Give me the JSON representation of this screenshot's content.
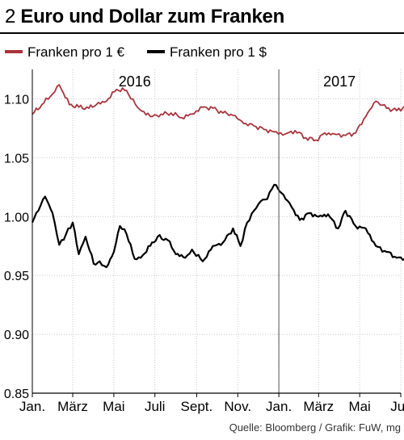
{
  "header": {
    "number": "2",
    "title": "Euro und Dollar zum Franken"
  },
  "source": "Quelle: Bloomberg / Grafik: FuW, mg",
  "chart_data": {
    "type": "line",
    "title": "Euro und Dollar zum Franken",
    "ylim": [
      0.85,
      1.125
    ],
    "y_ticks": [
      "1.10",
      "1.05",
      "1.00",
      "0.95",
      "0.90",
      "0.85"
    ],
    "y_tick_values": [
      1.1,
      1.05,
      1.0,
      0.95,
      0.9,
      0.85
    ],
    "x_tick_labels": [
      "Jan.",
      "März",
      "Mai",
      "Juli",
      "Sept.",
      "Nov.",
      "Jan.",
      "März",
      "Mai",
      "Juli"
    ],
    "x_tick_months": [
      "2016-01",
      "2016-03",
      "2016-05",
      "2016-07",
      "2016-09",
      "2016-11",
      "2017-01",
      "2017-03",
      "2017-05",
      "2017-07"
    ],
    "xlim": [
      "2016-01",
      "2017-07"
    ],
    "year_labels": [
      {
        "label": "2016",
        "month": "2016-06"
      },
      {
        "label": "2017",
        "month": "2017-04"
      }
    ],
    "year_divider": "2017-01",
    "grid": true,
    "legend_position": "top-left",
    "series": [
      {
        "name": "Franken pro 1 €",
        "color": "#a8343c",
        "x": [
          "2016-01-01",
          "2016-01-15",
          "2016-01-31",
          "2016-02-10",
          "2016-02-25",
          "2016-03-10",
          "2016-03-25",
          "2016-04-05",
          "2016-04-20",
          "2016-05-05",
          "2016-05-20",
          "2016-06-05",
          "2016-06-24",
          "2016-07-10",
          "2016-07-25",
          "2016-08-10",
          "2016-08-25",
          "2016-09-10",
          "2016-09-25",
          "2016-10-10",
          "2016-10-25",
          "2016-11-10",
          "2016-11-25",
          "2016-12-10",
          "2016-12-25",
          "2017-01-10",
          "2017-01-25",
          "2017-02-10",
          "2017-02-25",
          "2017-03-10",
          "2017-03-25",
          "2017-04-10",
          "2017-04-25",
          "2017-05-10",
          "2017-05-25",
          "2017-06-10",
          "2017-06-25",
          "2017-07-10",
          "2017-07-28"
        ],
        "y": [
          1.087,
          1.095,
          1.104,
          1.112,
          1.095,
          1.093,
          1.092,
          1.095,
          1.098,
          1.108,
          1.107,
          1.093,
          1.085,
          1.087,
          1.088,
          1.084,
          1.087,
          1.093,
          1.092,
          1.088,
          1.086,
          1.079,
          1.077,
          1.074,
          1.072,
          1.07,
          1.073,
          1.067,
          1.065,
          1.071,
          1.07,
          1.069,
          1.071,
          1.085,
          1.098,
          1.092,
          1.09,
          1.094,
          1.105
        ]
      },
      {
        "name": "Franken pro 1 $",
        "color": "#000000",
        "x": [
          "2016-01-01",
          "2016-01-10",
          "2016-01-20",
          "2016-01-31",
          "2016-02-10",
          "2016-02-20",
          "2016-03-01",
          "2016-03-10",
          "2016-03-20",
          "2016-04-01",
          "2016-04-10",
          "2016-04-20",
          "2016-05-01",
          "2016-05-10",
          "2016-05-20",
          "2016-06-01",
          "2016-06-10",
          "2016-06-24",
          "2016-07-05",
          "2016-07-20",
          "2016-08-01",
          "2016-08-15",
          "2016-08-25",
          "2016-09-10",
          "2016-09-25",
          "2016-10-10",
          "2016-10-25",
          "2016-11-05",
          "2016-11-15",
          "2016-11-25",
          "2016-12-05",
          "2016-12-15",
          "2016-12-25",
          "2017-01-05",
          "2017-01-20",
          "2017-02-01",
          "2017-02-15",
          "2017-03-01",
          "2017-03-15",
          "2017-03-30",
          "2017-04-10",
          "2017-04-25",
          "2017-05-10",
          "2017-05-25",
          "2017-06-10",
          "2017-06-25",
          "2017-07-10",
          "2017-07-28"
        ],
        "y": [
          0.995,
          1.005,
          1.017,
          1.003,
          0.976,
          0.985,
          0.995,
          0.968,
          0.983,
          0.96,
          0.962,
          0.957,
          0.97,
          0.992,
          0.985,
          0.964,
          0.965,
          0.975,
          0.983,
          0.98,
          0.968,
          0.965,
          0.972,
          0.962,
          0.975,
          0.978,
          0.99,
          0.975,
          0.995,
          1.005,
          1.013,
          1.015,
          1.027,
          1.02,
          1.008,
          0.997,
          1.003,
          1.0,
          1.002,
          0.99,
          1.005,
          0.992,
          0.99,
          0.975,
          0.97,
          0.965,
          0.963,
          0.968
        ]
      }
    ]
  }
}
